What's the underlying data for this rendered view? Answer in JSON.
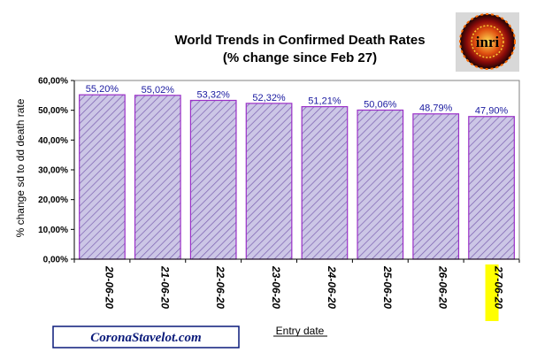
{
  "chart_data": {
    "type": "bar",
    "title": "World Trends in Confirmed Death Rates",
    "subtitle": "(% change since Feb 27)",
    "xlabel": "Entry date",
    "ylabel": "% change sd to dd death rate",
    "categories": [
      "20-06-20",
      "21-06-20",
      "22-06-20",
      "23-06-20",
      "24-06-20",
      "25-06-20",
      "26-06-20",
      "27-06-20"
    ],
    "values": [
      55.2,
      55.02,
      53.32,
      52.32,
      51.21,
      50.06,
      48.79,
      47.9
    ],
    "data_labels": [
      "55,20%",
      "55,02%",
      "53,32%",
      "52,32%",
      "51,21%",
      "50,06%",
      "48,79%",
      "47,90%"
    ],
    "ylim": [
      0,
      60
    ],
    "yticks": [
      "0,00%",
      "10,00%",
      "20,00%",
      "30,00%",
      "40,00%",
      "50,00%",
      "60,00%"
    ],
    "ytick_values": [
      0,
      10,
      20,
      30,
      40,
      50,
      60
    ],
    "grid": false,
    "legend": "none",
    "highlighted_category": "27-06-20",
    "colors": {
      "bar_fill": "#ccc6e6",
      "bar_hatch": "#7a5fb0",
      "bar_border": "#9b30c8",
      "highlight": "#ffff00",
      "data_label": "#1a1aa0",
      "brand": "#0a1a7a"
    }
  },
  "footer": {
    "brand": "CoronaStavelot.com"
  },
  "logo": {
    "icon": "virus-logo-icon",
    "text": "inri"
  }
}
